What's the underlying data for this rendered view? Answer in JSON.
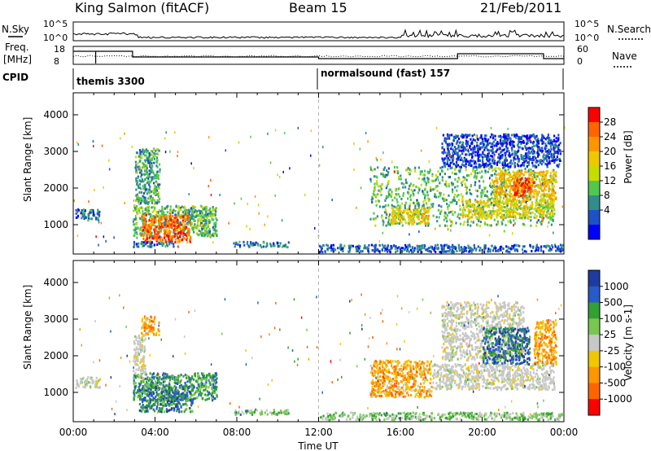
{
  "header": {
    "station": "King Salmon (fitACF)",
    "beam": "Beam 15",
    "date": "21/Feb/2011"
  },
  "status_panels": {
    "nsky_label": "N.Sky",
    "nsky_ticks": [
      "10^5",
      "10^0"
    ],
    "nsearch_label": "N.Search",
    "nsearch_ticks": [
      "10^5",
      "10^0"
    ],
    "freq_label_1": "Freq.",
    "freq_label_2": "[MHz]",
    "freq_ticks": [
      "18",
      "8"
    ],
    "nave_label": "Nave",
    "nave_ticks": [
      "60",
      "0"
    ],
    "cpid_label": "CPID",
    "cpid_segments": [
      {
        "name": "themis 3300",
        "start_hour": 0
      },
      {
        "name": "normalsound (fast) 157",
        "start_hour": 12
      }
    ]
  },
  "time_axis": {
    "label": "Time UT",
    "ticks": [
      "00:00",
      "04:00",
      "08:00",
      "12:00",
      "16:00",
      "20:00",
      "00:00"
    ]
  },
  "colors": {
    "grey_scatter": "#c8c8c8",
    "dashed_line": "#b4b4b4"
  },
  "chart_data": [
    {
      "type": "heatmap",
      "name": "power",
      "ylabel": "Slant Range [km]",
      "yticks": [
        "4000",
        "3000",
        "2000",
        "1000"
      ],
      "ylim": [
        200,
        4600
      ],
      "xlim_hours": [
        0,
        24
      ],
      "colorbar_label": "Power [dB]",
      "colorbar_ticks": [
        "28",
        "24",
        "20",
        "16",
        "12",
        "8",
        "4"
      ],
      "colorbar_colors": [
        "#ff0000",
        "#ff6400",
        "#ff9600",
        "#f0c800",
        "#c8dc00",
        "#50c850",
        "#328c8c",
        "#1e50c8",
        "#0000ff"
      ],
      "regions": [
        {
          "t0": 0.1,
          "t1": 1.3,
          "r0": 1150,
          "r1": 1450,
          "level": 0.18
        },
        {
          "t0": 2.9,
          "t1": 7.0,
          "r0": 700,
          "r1": 1550,
          "level": 0.35
        },
        {
          "t0": 3.3,
          "t1": 5.7,
          "r0": 550,
          "r1": 1300,
          "level": 0.85
        },
        {
          "t0": 3.0,
          "t1": 4.2,
          "r0": 1600,
          "r1": 3100,
          "level": 0.3
        },
        {
          "t0": 2.9,
          "t1": 5.0,
          "r0": 420,
          "r1": 560,
          "level": 0.2
        },
        {
          "t0": 7.8,
          "t1": 10.5,
          "r0": 420,
          "r1": 560,
          "level": 0.2
        },
        {
          "t0": 12.0,
          "t1": 23.9,
          "r0": 280,
          "r1": 480,
          "level": 0.15
        },
        {
          "t0": 14.5,
          "t1": 23.5,
          "r0": 1000,
          "r1": 2600,
          "level": 0.35
        },
        {
          "t0": 15.5,
          "t1": 17.5,
          "r0": 1050,
          "r1": 1500,
          "level": 0.6
        },
        {
          "t0": 19.0,
          "t1": 23.5,
          "r0": 1200,
          "r1": 1700,
          "level": 0.55
        },
        {
          "t0": 20.5,
          "t1": 23.6,
          "r0": 1700,
          "r1": 2500,
          "level": 0.65
        },
        {
          "t0": 21.5,
          "t1": 22.5,
          "r0": 1800,
          "r1": 2300,
          "level": 0.95
        },
        {
          "t0": 18.0,
          "t1": 23.8,
          "r0": 2600,
          "r1": 3500,
          "level": 0.1
        }
      ]
    },
    {
      "type": "heatmap",
      "name": "velocity",
      "ylabel": "Slant Range [km]",
      "yticks": [
        "4000",
        "3000",
        "2000",
        "1000"
      ],
      "ylim": [
        200,
        4600
      ],
      "xlim_hours": [
        0,
        24
      ],
      "colorbar_label": "Velocity [m s-1]",
      "colorbar_ticks": [
        "1000",
        "500",
        "100",
        "25",
        "-25",
        "-100",
        "-500",
        "-1000"
      ],
      "colorbar_colors": [
        "#1e3ca0",
        "#285ac8",
        "#32a032",
        "#78c850",
        "#c8c8c8",
        "#f0c800",
        "#ff9600",
        "#ff6400",
        "#ff0000"
      ],
      "regions": [
        {
          "t0": 0.1,
          "t1": 1.3,
          "r0": 1150,
          "r1": 1450,
          "level": 0.5
        },
        {
          "t0": 2.9,
          "t1": 7.0,
          "r0": 800,
          "r1": 1550,
          "level": 0.75
        },
        {
          "t0": 3.2,
          "t1": 5.8,
          "r0": 500,
          "r1": 1200,
          "level": 0.82
        },
        {
          "t0": 2.9,
          "t1": 3.5,
          "r0": 1400,
          "r1": 2600,
          "level": 0.5
        },
        {
          "t0": 3.3,
          "t1": 4.2,
          "r0": 2600,
          "r1": 3100,
          "level": 0.3
        },
        {
          "t0": 7.8,
          "t1": 10.5,
          "r0": 420,
          "r1": 560,
          "level": 0.65
        },
        {
          "t0": 12.0,
          "t1": 23.9,
          "r0": 280,
          "r1": 480,
          "level": 0.62
        },
        {
          "t0": 14.5,
          "t1": 17.5,
          "r0": 900,
          "r1": 1900,
          "level": 0.3
        },
        {
          "t0": 17.5,
          "t1": 23.5,
          "r0": 1100,
          "r1": 1800,
          "level": 0.5
        },
        {
          "t0": 18.0,
          "t1": 22.0,
          "r0": 1900,
          "r1": 3500,
          "level": 0.5
        },
        {
          "t0": 20.0,
          "t1": 22.3,
          "r0": 1800,
          "r1": 2800,
          "level": 0.85
        },
        {
          "t0": 22.5,
          "t1": 23.6,
          "r0": 1800,
          "r1": 3000,
          "level": 0.3
        }
      ]
    }
  ]
}
